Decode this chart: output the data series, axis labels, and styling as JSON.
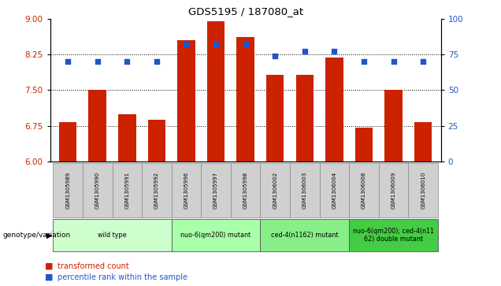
{
  "title": "GDS5195 / 187080_at",
  "samples": [
    "GSM1305989",
    "GSM1305990",
    "GSM1305991",
    "GSM1305992",
    "GSM1305996",
    "GSM1305997",
    "GSM1305998",
    "GSM1306002",
    "GSM1306003",
    "GSM1306004",
    "GSM1306008",
    "GSM1306009",
    "GSM1306010"
  ],
  "bar_values": [
    6.82,
    7.5,
    7.0,
    6.88,
    8.55,
    8.95,
    8.62,
    7.82,
    7.82,
    8.18,
    6.72,
    7.5,
    6.82
  ],
  "dot_values": [
    70,
    70,
    70,
    70,
    82,
    82,
    82,
    74,
    77,
    77,
    70,
    70,
    70
  ],
  "bar_color": "#cc2200",
  "dot_color": "#2255cc",
  "ylim_left": [
    6,
    9
  ],
  "ylim_right": [
    0,
    100
  ],
  "yticks_left": [
    6,
    6.75,
    7.5,
    8.25,
    9
  ],
  "yticks_right": [
    0,
    25,
    50,
    75,
    100
  ],
  "grid_values": [
    6.75,
    7.5,
    8.25
  ],
  "groups": [
    {
      "label": "wild type",
      "start": 0,
      "end": 4,
      "color": "#ccffcc"
    },
    {
      "label": "nuo-6(qm200) mutant",
      "start": 4,
      "end": 7,
      "color": "#aaffaa"
    },
    {
      "label": "ced-4(n1162) mutant",
      "start": 7,
      "end": 10,
      "color": "#88ee88"
    },
    {
      "label": "nuo-6(qm200); ced-4(n11\n62) double mutant",
      "start": 10,
      "end": 13,
      "color": "#44cc44"
    }
  ],
  "xlabel_label": "genotype/variation",
  "legend_bar_label": "transformed count",
  "legend_dot_label": "percentile rank within the sample",
  "bar_width": 0.6,
  "sample_box_color": "#d0d0d0",
  "plot_bg": "#ffffff",
  "axis_bg": "#ffffff"
}
